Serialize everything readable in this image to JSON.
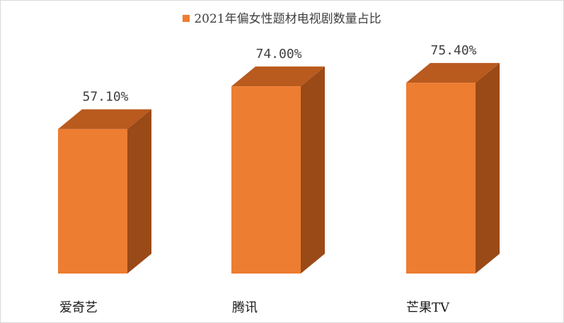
{
  "chart_data": {
    "type": "bar",
    "style": "3d",
    "categories": [
      "爱奇艺",
      "腾讯",
      "芒果TV"
    ],
    "series": [
      {
        "name": "2021年偏女性题材电视剧数量占比",
        "values": [
          57.1,
          74.0,
          75.4
        ]
      }
    ],
    "data_labels": [
      "57.10%",
      "74.00%",
      "75.40%"
    ],
    "ylim": [
      0,
      100
    ],
    "unit": "%",
    "legend_position": "top",
    "grid": false,
    "colors": {
      "front": "#ED7D31",
      "top": "#B95A1E",
      "side": "#9A4A17",
      "text": "#404040"
    }
  }
}
